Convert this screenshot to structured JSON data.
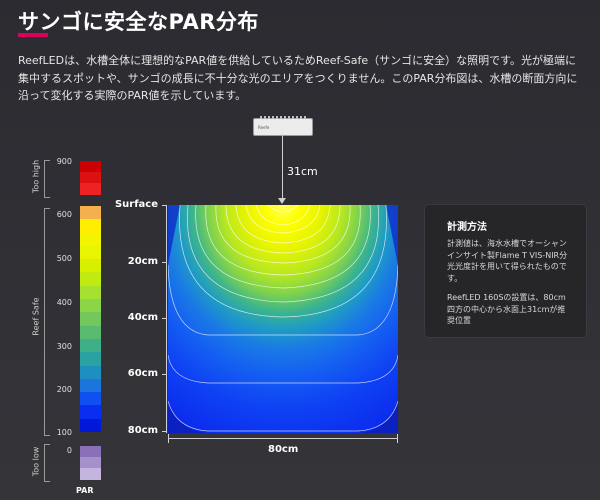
{
  "header": {
    "title": "サンゴに安全なPAR分布",
    "intro": "ReefLEDは、水槽全体に理想的なPAR値を供給しているためReef-Safe（サンゴに安全）な照明です。光が極端に集中するスポットや、サンゴの成長に不十分な光のエリアをつくりません。このPAR分布図は、水槽の断面方向に沿って変化する実際のPAR値を示しています。"
  },
  "legend": {
    "too_high_label": "Too high",
    "reef_safe_label": "Reef Safe",
    "too_low_label": "Too low",
    "unit_label": "PAR",
    "ticks": [
      "900",
      "600",
      "500",
      "400",
      "300",
      "200",
      "100",
      "0"
    ],
    "colors": {
      "too_high": [
        "#cc0000",
        "#dd1111",
        "#ee2222"
      ],
      "too_low": [
        "#8b6fb8",
        "#a590cc",
        "#c4b4e0"
      ],
      "reef_safe": [
        "#f4b04c",
        "#ffee00",
        "#f4f400",
        "#e8f400",
        "#d6f000",
        "#c0ea10",
        "#a6e030",
        "#8cd448",
        "#72c85a",
        "#58bb70",
        "#3eaf88",
        "#2aa2a0",
        "#1f8fc0",
        "#1a75dd",
        "#1050f0",
        "#0a2ef0",
        "#0018d8"
      ]
    }
  },
  "fixture": {
    "brand": "Reefe",
    "distance_label": "31cm"
  },
  "tank": {
    "depth_labels": [
      "Surface",
      "20cm",
      "40cm",
      "60cm",
      "80cm"
    ],
    "width_label": "80cm"
  },
  "chart_data": {
    "type": "heatmap",
    "x_range_cm": [
      0,
      80
    ],
    "depth_range_cm": [
      0,
      80
    ],
    "xlabel": "80cm",
    "ylabels": [
      "Surface",
      "20cm",
      "40cm",
      "60cm",
      "80cm"
    ],
    "colorbar_range": [
      0,
      900
    ],
    "colorbar_ticks": [
      0,
      100,
      200,
      300,
      400,
      500,
      600,
      900
    ],
    "peak_location": "top-center",
    "approx_par_center_profile": [
      {
        "depth_cm": 0,
        "par": 600
      },
      {
        "depth_cm": 10,
        "par": 480
      },
      {
        "depth_cm": 20,
        "par": 360
      },
      {
        "depth_cm": 30,
        "par": 270
      },
      {
        "depth_cm": 40,
        "par": 210
      },
      {
        "depth_cm": 50,
        "par": 170
      },
      {
        "depth_cm": 60,
        "par": 150
      },
      {
        "depth_cm": 70,
        "par": 135
      },
      {
        "depth_cm": 80,
        "par": 120
      }
    ]
  },
  "note": {
    "title": "計測方法",
    "p1": "計測値は、海水水槽でオーシャンインサイト製Flame T VIS-NIR分光光度計を用いて得られたものです。",
    "p2": "ReefLED 160Sの設置は、80cm四方の中心から水面上31cmが推奨位置"
  }
}
